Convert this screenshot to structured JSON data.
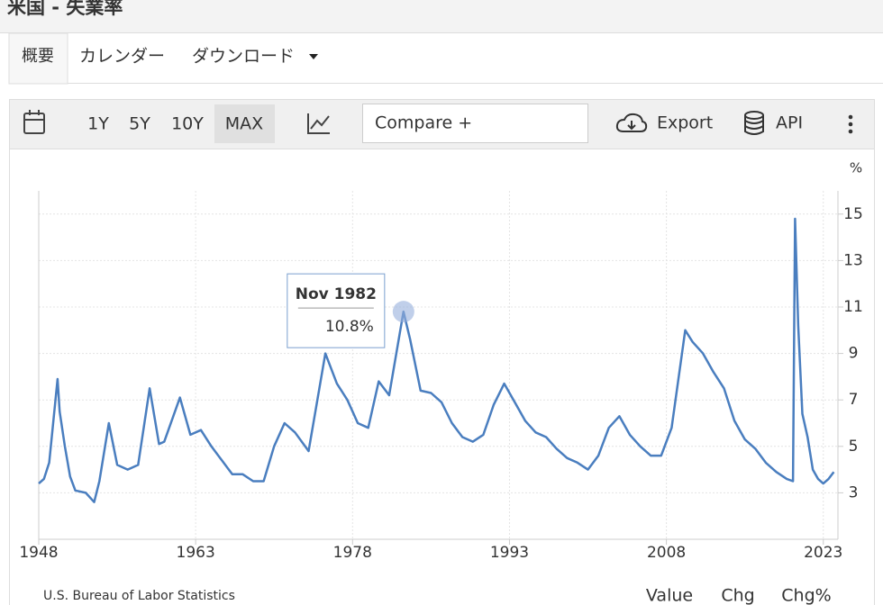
{
  "header": {
    "title": "米国 - 失業率"
  },
  "tabs": [
    "概要",
    "カレンダー",
    "ダウンロード"
  ],
  "toolbar": {
    "ranges": [
      "1Y",
      "5Y",
      "10Y",
      "MAX"
    ],
    "compare": "Compare +",
    "export": "Export",
    "api": "API"
  },
  "chart_data": {
    "type": "line",
    "y_unit": "%",
    "x": [
      1948.0,
      1948.5,
      1949.0,
      1949.8,
      1950.0,
      1950.5,
      1951.0,
      1951.5,
      1952.5,
      1953.3,
      1953.8,
      1954.7,
      1955.5,
      1956.5,
      1957.5,
      1958.6,
      1959.5,
      1960.0,
      1961.5,
      1962.5,
      1963.5,
      1964.5,
      1965.5,
      1966.5,
      1967.5,
      1968.5,
      1969.5,
      1970.5,
      1971.5,
      1972.5,
      1973.8,
      1975.4,
      1976.5,
      1977.5,
      1978.5,
      1979.5,
      1980.5,
      1981.5,
      1982.87,
      1983.5,
      1984.5,
      1985.5,
      1986.5,
      1987.5,
      1988.5,
      1989.5,
      1990.5,
      1991.5,
      1992.5,
      1993.5,
      1994.5,
      1995.5,
      1996.5,
      1997.5,
      1998.5,
      1999.5,
      2000.5,
      2001.5,
      2002.5,
      2003.5,
      2004.5,
      2005.5,
      2006.5,
      2007.5,
      2008.5,
      2009.8,
      2010.5,
      2011.5,
      2012.5,
      2013.5,
      2014.5,
      2015.5,
      2016.5,
      2017.5,
      2018.5,
      2019.5,
      2020.1,
      2020.3,
      2020.6,
      2021.0,
      2021.5,
      2022.0,
      2022.5,
      2023.0,
      2023.5,
      2024.0
    ],
    "series": [
      {
        "name": "失業率",
        "color": "#4a7ebf",
        "values": [
          3.4,
          3.6,
          4.3,
          7.9,
          6.5,
          5.0,
          3.7,
          3.1,
          3.0,
          2.6,
          3.5,
          6.0,
          4.2,
          4.0,
          4.2,
          7.5,
          5.1,
          5.2,
          7.1,
          5.5,
          5.7,
          5.0,
          4.4,
          3.8,
          3.8,
          3.5,
          3.5,
          5.0,
          6.0,
          5.6,
          4.8,
          9.0,
          7.7,
          7.0,
          6.0,
          5.8,
          7.8,
          7.2,
          10.8,
          9.6,
          7.4,
          7.3,
          6.9,
          6.0,
          5.4,
          5.2,
          5.5,
          6.8,
          7.7,
          6.9,
          6.1,
          5.6,
          5.4,
          4.9,
          4.5,
          4.3,
          4.0,
          4.6,
          5.8,
          6.3,
          5.5,
          5.0,
          4.6,
          4.6,
          5.8,
          10.0,
          9.5,
          9.0,
          8.2,
          7.5,
          6.1,
          5.3,
          4.9,
          4.3,
          3.9,
          3.6,
          3.5,
          14.8,
          10.2,
          6.4,
          5.4,
          4.0,
          3.6,
          3.4,
          3.6,
          3.9
        ]
      }
    ],
    "xlim": [
      1948,
      2024.4
    ],
    "xticks": [
      1948,
      1963,
      1978,
      1993,
      2008,
      2023
    ],
    "ylim": [
      1,
      16
    ],
    "yticks": [
      3,
      5,
      7,
      9,
      11,
      13,
      15
    ],
    "grid": true,
    "tooltip": {
      "title": "Nov 1982",
      "x": 1982.87,
      "value": 10.8,
      "value_label": "10.8%"
    }
  },
  "footer": {
    "source": "U.S. Bureau of Labor Statistics",
    "views": [
      "Value",
      "Chg",
      "Chg%"
    ]
  }
}
